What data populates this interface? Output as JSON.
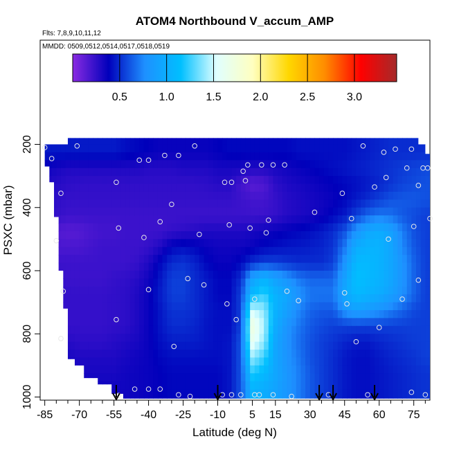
{
  "chart_data": {
    "type": "heatmap",
    "title": "ATOM4 Northbound V_accum_AMP",
    "subtitle": "Flts: 7,8,9,10,11,12",
    "annotation": "MMDD: 0509,0512,0514,0517,0518,0519",
    "xlabel": "Latitude (deg N)",
    "ylabel": "PSXC (mbar)",
    "x_ticks": [
      -85,
      -70,
      -55,
      -40,
      -25,
      -10,
      5,
      15,
      30,
      45,
      60,
      75
    ],
    "x_minor_step": 5,
    "xlim": [
      -87,
      82
    ],
    "y_ticks": [
      200,
      400,
      600,
      800,
      1000
    ],
    "ylim": [
      1010,
      -130
    ],
    "y_reversed": true,
    "colorbar": {
      "ticks": [
        0.5,
        1.0,
        1.5,
        2.0,
        2.5,
        3.0
      ],
      "tick_labels": [
        "0.5",
        "1.0",
        "1.5",
        "2.0",
        "2.5",
        "3.0"
      ],
      "range": [
        0.0,
        3.45
      ],
      "colors": [
        "#8a2be2",
        "#0000bb",
        "#1e90ff",
        "#00bfff",
        "#e0ffff",
        "#ffffc0",
        "#ffd700",
        "#ff8c00",
        "#ff0000",
        "#a52a2a"
      ]
    },
    "field": {
      "lat": [
        -85,
        -80,
        -75,
        -70,
        -65,
        -60,
        -55,
        -50,
        -45,
        -40,
        -35,
        -30,
        -25,
        -20,
        -15,
        -10,
        -5,
        0,
        5,
        10,
        15,
        20,
        25,
        30,
        35,
        40,
        45,
        50,
        55,
        60,
        65,
        70,
        75,
        80
      ],
      "pressure": [
        225,
        275,
        325,
        375,
        425,
        475,
        525,
        575,
        625,
        675,
        725,
        775,
        825,
        875,
        925,
        975
      ],
      "values": [
        [
          0.45,
          0.45,
          0.45,
          0.45,
          0.45,
          0.45,
          0.45,
          0.42,
          0.4,
          0.38,
          0.36,
          0.36,
          0.36,
          0.36,
          0.36,
          0.38,
          0.4,
          0.4,
          0.4,
          0.4,
          0.4,
          0.4,
          0.42,
          0.42,
          0.42,
          0.42,
          0.42,
          0.44,
          0.46,
          0.48,
          0.5,
          0.5,
          0.5,
          0.5
        ],
        [
          0.35,
          0.32,
          0.3,
          0.3,
          0.3,
          0.3,
          0.3,
          0.3,
          0.3,
          0.28,
          0.28,
          0.28,
          0.3,
          0.3,
          0.3,
          0.32,
          0.32,
          0.32,
          0.3,
          0.3,
          0.32,
          0.34,
          0.36,
          0.38,
          0.4,
          0.42,
          0.44,
          0.46,
          0.48,
          0.5,
          0.52,
          0.54,
          0.56,
          0.58
        ],
        [
          0.3,
          0.28,
          0.26,
          0.25,
          0.25,
          0.25,
          0.25,
          0.25,
          0.25,
          0.25,
          0.25,
          0.25,
          0.25,
          0.25,
          0.26,
          0.28,
          0.28,
          0.2,
          0.14,
          0.16,
          0.26,
          0.3,
          0.32,
          0.34,
          0.36,
          0.38,
          0.4,
          0.42,
          0.45,
          0.48,
          0.52,
          0.56,
          0.58,
          0.6
        ],
        [
          0.28,
          0.26,
          0.24,
          0.24,
          0.24,
          0.24,
          0.24,
          0.24,
          0.24,
          0.24,
          0.24,
          0.24,
          0.24,
          0.24,
          0.24,
          0.24,
          0.24,
          0.22,
          0.2,
          0.2,
          0.24,
          0.28,
          0.3,
          0.32,
          0.34,
          0.36,
          0.4,
          0.45,
          0.5,
          0.55,
          0.6,
          0.62,
          0.62,
          0.6
        ],
        [
          0.26,
          0.24,
          0.22,
          0.22,
          0.22,
          0.22,
          0.22,
          0.22,
          0.22,
          0.22,
          0.22,
          0.22,
          0.22,
          0.22,
          0.22,
          0.22,
          0.22,
          0.22,
          0.22,
          0.22,
          0.24,
          0.28,
          0.3,
          0.32,
          0.35,
          0.4,
          0.45,
          0.55,
          0.65,
          0.7,
          0.68,
          0.62,
          0.58,
          0.55
        ],
        [
          0.2,
          0.16,
          0.14,
          0.15,
          0.18,
          0.2,
          0.2,
          0.22,
          0.22,
          0.22,
          0.22,
          0.24,
          0.26,
          0.28,
          0.3,
          0.3,
          0.3,
          0.3,
          0.32,
          0.34,
          0.36,
          0.38,
          0.4,
          0.42,
          0.45,
          0.5,
          0.6,
          0.8,
          0.95,
          1.0,
          0.9,
          0.72,
          0.6,
          0.55
        ],
        [
          0.2,
          0.18,
          0.18,
          0.18,
          0.2,
          0.22,
          0.22,
          0.22,
          0.22,
          0.24,
          0.3,
          0.4,
          0.42,
          0.4,
          0.36,
          0.34,
          0.34,
          0.34,
          0.36,
          0.4,
          0.42,
          0.44,
          0.45,
          0.46,
          0.48,
          0.52,
          0.7,
          1.0,
          1.05,
          1.05,
          0.95,
          0.75,
          0.62,
          0.55
        ],
        [
          0.22,
          0.22,
          0.22,
          0.22,
          0.22,
          0.22,
          0.22,
          0.22,
          0.24,
          0.3,
          0.4,
          0.5,
          0.52,
          0.48,
          0.4,
          0.36,
          0.36,
          0.4,
          0.5,
          0.55,
          0.55,
          0.52,
          0.5,
          0.5,
          0.5,
          0.55,
          0.8,
          1.1,
          1.1,
          1.05,
          0.95,
          0.8,
          0.65,
          0.55
        ],
        [
          0.24,
          0.24,
          0.22,
          0.22,
          0.22,
          0.22,
          0.24,
          0.25,
          0.28,
          0.34,
          0.44,
          0.55,
          0.55,
          0.5,
          0.45,
          0.4,
          0.4,
          0.5,
          0.9,
          1.05,
          0.9,
          0.8,
          0.7,
          0.65,
          0.65,
          0.65,
          0.9,
          1.15,
          1.1,
          1.05,
          0.95,
          0.8,
          0.65,
          0.55
        ],
        [
          0.24,
          0.24,
          0.24,
          0.24,
          0.24,
          0.24,
          0.25,
          0.26,
          0.3,
          0.36,
          0.46,
          0.55,
          0.55,
          0.5,
          0.45,
          0.4,
          0.4,
          0.55,
          1.1,
          1.25,
          1.05,
          0.95,
          0.8,
          0.7,
          0.7,
          0.7,
          0.95,
          1.1,
          1.05,
          1.0,
          0.9,
          0.78,
          0.65,
          0.55
        ],
        [
          0.24,
          0.24,
          0.24,
          0.24,
          0.24,
          0.24,
          0.25,
          0.26,
          0.3,
          0.36,
          0.44,
          0.52,
          0.52,
          0.5,
          0.45,
          0.42,
          0.42,
          0.55,
          1.5,
          1.4,
          1.05,
          0.9,
          0.75,
          0.65,
          0.62,
          0.62,
          0.8,
          0.9,
          0.85,
          0.8,
          0.72,
          0.65,
          0.58,
          0.55
        ],
        [
          0.26,
          0.26,
          0.24,
          0.24,
          0.24,
          0.24,
          0.25,
          0.26,
          0.3,
          0.36,
          0.44,
          0.5,
          0.5,
          0.48,
          0.44,
          0.42,
          0.42,
          0.55,
          1.7,
          1.45,
          1.0,
          0.8,
          0.7,
          0.62,
          0.58,
          0.55,
          0.55,
          0.55,
          0.55,
          0.55,
          0.55,
          0.55,
          0.55,
          0.55
        ],
        [
          0.3,
          0.3,
          0.28,
          0.26,
          0.26,
          0.26,
          0.28,
          0.3,
          0.32,
          0.36,
          0.42,
          0.46,
          0.46,
          0.46,
          0.44,
          0.42,
          0.44,
          0.6,
          1.6,
          1.4,
          0.95,
          0.78,
          0.68,
          0.6,
          0.55,
          0.52,
          0.48,
          0.45,
          0.45,
          0.48,
          0.5,
          0.52,
          0.54,
          0.55
        ],
        [
          0.34,
          0.34,
          0.32,
          0.3,
          0.3,
          0.3,
          0.3,
          0.32,
          0.34,
          0.36,
          0.4,
          0.42,
          0.42,
          0.42,
          0.42,
          0.42,
          0.44,
          0.6,
          1.4,
          1.25,
          0.95,
          0.8,
          0.7,
          0.6,
          0.55,
          0.5,
          0.45,
          0.42,
          0.42,
          0.45,
          0.48,
          0.5,
          0.52,
          0.55
        ],
        [
          0.36,
          0.36,
          0.34,
          0.32,
          0.32,
          0.32,
          0.32,
          0.34,
          0.35,
          0.36,
          0.38,
          0.4,
          0.4,
          0.4,
          0.4,
          0.4,
          0.44,
          0.6,
          1.2,
          1.1,
          0.95,
          0.82,
          0.72,
          0.62,
          0.55,
          0.5,
          0.45,
          0.42,
          0.42,
          0.44,
          0.46,
          0.48,
          0.5,
          0.52
        ],
        [
          0.38,
          0.38,
          0.36,
          0.34,
          0.34,
          0.34,
          0.34,
          0.34,
          0.35,
          0.36,
          0.38,
          0.4,
          0.4,
          0.4,
          0.4,
          0.4,
          0.44,
          0.6,
          1.05,
          1.0,
          0.92,
          0.82,
          0.72,
          0.62,
          0.55,
          0.5,
          0.45,
          0.42,
          0.42,
          0.44,
          0.46,
          0.48,
          0.5,
          0.52
        ]
      ]
    },
    "coverage": [
      {
        "lat0": -85,
        "lat1": -83,
        "p0": 200,
        "p1": 270
      },
      {
        "lat0": -83,
        "lat1": -81,
        "p0": 200,
        "p1": 320
      },
      {
        "lat0": -81,
        "lat1": -79,
        "p0": 200,
        "p1": 430
      },
      {
        "lat0": -79,
        "lat1": -77,
        "p0": 200,
        "p1": 600
      },
      {
        "lat0": -77,
        "lat1": -75,
        "p0": 200,
        "p1": 720
      },
      {
        "lat0": -75,
        "lat1": -72,
        "p0": 180,
        "p1": 880
      },
      {
        "lat0": -72,
        "lat1": -68,
        "p0": 180,
        "p1": 900
      },
      {
        "lat0": -68,
        "lat1": -62,
        "p0": 180,
        "p1": 940
      },
      {
        "lat0": -62,
        "lat1": -56,
        "p0": 180,
        "p1": 960
      },
      {
        "lat0": -56,
        "lat1": -51,
        "p0": 180,
        "p1": 990
      },
      {
        "lat0": -51,
        "lat1": 57,
        "p0": 180,
        "p1": 1005
      },
      {
        "lat0": 57,
        "lat1": 64,
        "p0": 180,
        "p1": 1005
      },
      {
        "lat0": 64,
        "lat1": 72,
        "p0": 180,
        "p1": 1005
      },
      {
        "lat0": 72,
        "lat1": 77,
        "p0": 180,
        "p1": 1005
      },
      {
        "lat0": 77,
        "lat1": 80,
        "p0": 200,
        "p1": 1005
      },
      {
        "lat0": 80,
        "lat1": 82,
        "p0": 230,
        "p1": 1005
      }
    ],
    "points": [
      {
        "lat": -85,
        "p": 210
      },
      {
        "lat": -71,
        "p": 205
      },
      {
        "lat": -82,
        "p": 245
      },
      {
        "lat": -78,
        "p": 355
      },
      {
        "lat": -80,
        "p": 505
      },
      {
        "lat": -77,
        "p": 665
      },
      {
        "lat": -78,
        "p": 815
      },
      {
        "lat": -54,
        "p": 320
      },
      {
        "lat": -53,
        "p": 465
      },
      {
        "lat": -54,
        "p": 755
      },
      {
        "lat": -44,
        "p": 250
      },
      {
        "lat": -42,
        "p": 495
      },
      {
        "lat": -40,
        "p": 660
      },
      {
        "lat": -40,
        "p": 250
      },
      {
        "lat": -35,
        "p": 445
      },
      {
        "lat": -33,
        "p": 235
      },
      {
        "lat": -30,
        "p": 390
      },
      {
        "lat": -29,
        "p": 840
      },
      {
        "lat": -27,
        "p": 235
      },
      {
        "lat": -23,
        "p": 625
      },
      {
        "lat": -20,
        "p": 205
      },
      {
        "lat": -18,
        "p": 485
      },
      {
        "lat": -16,
        "p": 645
      },
      {
        "lat": -7,
        "p": 320
      },
      {
        "lat": -4,
        "p": 320
      },
      {
        "lat": -6,
        "p": 705
      },
      {
        "lat": -5,
        "p": 455
      },
      {
        "lat": -2,
        "p": 755
      },
      {
        "lat": 1,
        "p": 285
      },
      {
        "lat": 2,
        "p": 315
      },
      {
        "lat": 3,
        "p": 265
      },
      {
        "lat": 4,
        "p": 465
      },
      {
        "lat": 6,
        "p": 690
      },
      {
        "lat": 9,
        "p": 265
      },
      {
        "lat": 11,
        "p": 480
      },
      {
        "lat": 12,
        "p": 440
      },
      {
        "lat": 14,
        "p": 265
      },
      {
        "lat": 19,
        "p": 265
      },
      {
        "lat": 20,
        "p": 665
      },
      {
        "lat": 25,
        "p": 695
      },
      {
        "lat": 32,
        "p": 415
      },
      {
        "lat": 44,
        "p": 355
      },
      {
        "lat": 45,
        "p": 670
      },
      {
        "lat": 46,
        "p": 705
      },
      {
        "lat": 48,
        "p": 435
      },
      {
        "lat": 50,
        "p": 825
      },
      {
        "lat": 53,
        "p": 205
      },
      {
        "lat": 58,
        "p": 335
      },
      {
        "lat": 60,
        "p": 780
      },
      {
        "lat": 62,
        "p": 225
      },
      {
        "lat": 63,
        "p": 305
      },
      {
        "lat": 64,
        "p": 500
      },
      {
        "lat": 67,
        "p": 215
      },
      {
        "lat": 70,
        "p": 690
      },
      {
        "lat": 72,
        "p": 275
      },
      {
        "lat": 74,
        "p": 215
      },
      {
        "lat": 75,
        "p": 460
      },
      {
        "lat": 77,
        "p": 630
      },
      {
        "lat": 77,
        "p": 330
      },
      {
        "lat": 79,
        "p": 275
      },
      {
        "lat": 81,
        "p": 275
      },
      {
        "lat": 82,
        "p": 435
      },
      {
        "lat": -53,
        "p": 995
      },
      {
        "lat": -46,
        "p": 975
      },
      {
        "lat": -40,
        "p": 975
      },
      {
        "lat": -35,
        "p": 975
      },
      {
        "lat": -27,
        "p": 993
      },
      {
        "lat": -22,
        "p": 998
      },
      {
        "lat": -8,
        "p": 993
      },
      {
        "lat": -4,
        "p": 993
      },
      {
        "lat": 0,
        "p": 993
      },
      {
        "lat": 6,
        "p": 993
      },
      {
        "lat": 8,
        "p": 993
      },
      {
        "lat": 14,
        "p": 993
      },
      {
        "lat": 22,
        "p": 998
      },
      {
        "lat": 38,
        "p": 993
      },
      {
        "lat": 55,
        "p": 993
      },
      {
        "lat": 74,
        "p": 985
      },
      {
        "lat": 80,
        "p": 993
      }
    ],
    "arrows_lat": [
      -54,
      -10,
      34,
      40,
      58
    ]
  }
}
